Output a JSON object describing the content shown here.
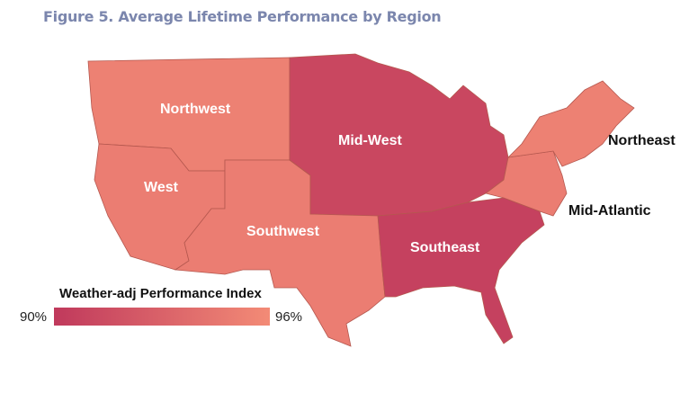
{
  "title": "Figure 5. Average Lifetime Performance by Region",
  "legend": {
    "title": "Weather-adj Performance Index",
    "min_label": "90%",
    "max_label": "96%",
    "min_value": 90,
    "max_value": 96,
    "color_low": "#c0395c",
    "color_high": "#f38b76"
  },
  "regions": [
    {
      "key": "northwest",
      "name": "Northwest",
      "index": 95.3
    },
    {
      "key": "west",
      "name": "West",
      "index": 95.0
    },
    {
      "key": "southwest",
      "name": "Southwest",
      "index": 95.0
    },
    {
      "key": "midwest",
      "name": "Mid-West",
      "index": 91.0
    },
    {
      "key": "southeast",
      "name": "Southeast",
      "index": 90.6
    },
    {
      "key": "northeast",
      "name": "Northeast",
      "index": 95.3
    },
    {
      "key": "midatlantic",
      "name": "Mid-Atlantic",
      "index": 95.0
    }
  ]
}
